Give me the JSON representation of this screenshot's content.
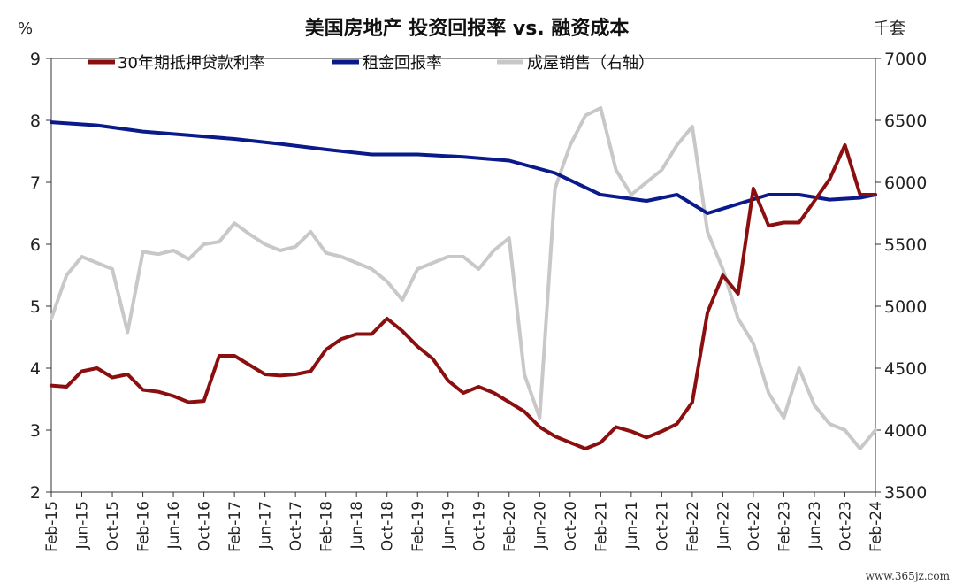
{
  "chart_data": {
    "type": "line",
    "title": "美国房地产 投资回报率 vs. 融资成本",
    "left_unit": "%",
    "right_unit": "千套",
    "ylim_left": [
      2,
      9
    ],
    "ylim_right": [
      3500,
      7000
    ],
    "left_ticks": [
      "2",
      "3",
      "4",
      "5",
      "6",
      "7",
      "8",
      "9"
    ],
    "right_ticks": [
      "3500",
      "4000",
      "4500",
      "5000",
      "5500",
      "6000",
      "6500",
      "7000"
    ],
    "x_start": "2015-02",
    "x_end": "2024-02",
    "x_tick_labels": [
      "Feb-15",
      "Jun-15",
      "Oct-15",
      "Feb-16",
      "Jun-16",
      "Oct-16",
      "Feb-17",
      "Jun-17",
      "Oct-17",
      "Feb-18",
      "Jun-18",
      "Oct-18",
      "Feb-19",
      "Jun-19",
      "Oct-19",
      "Feb-20",
      "Jun-20",
      "Oct-20",
      "Feb-21",
      "Jun-21",
      "Oct-21",
      "Feb-22",
      "Jun-22",
      "Oct-22",
      "Feb-23",
      "Jun-23",
      "Oct-23",
      "Feb-24"
    ],
    "legend_position": "top",
    "series": [
      {
        "name": "30年期抵押贷款利率",
        "axis": "left",
        "color": "#8b0f0f",
        "x": [
          "2015-02",
          "2015-04",
          "2015-06",
          "2015-08",
          "2015-10",
          "2015-12",
          "2016-02",
          "2016-04",
          "2016-06",
          "2016-08",
          "2016-10",
          "2016-12",
          "2017-02",
          "2017-04",
          "2017-06",
          "2017-08",
          "2017-10",
          "2017-12",
          "2018-02",
          "2018-04",
          "2018-06",
          "2018-08",
          "2018-10",
          "2018-12",
          "2019-02",
          "2019-04",
          "2019-06",
          "2019-08",
          "2019-10",
          "2019-12",
          "2020-02",
          "2020-04",
          "2020-06",
          "2020-08",
          "2020-10",
          "2020-12",
          "2021-02",
          "2021-04",
          "2021-06",
          "2021-08",
          "2021-10",
          "2021-12",
          "2022-02",
          "2022-04",
          "2022-06",
          "2022-08",
          "2022-10",
          "2022-12",
          "2023-02",
          "2023-04",
          "2023-06",
          "2023-08",
          "2023-10",
          "2023-12",
          "2024-02"
        ],
        "values": [
          3.72,
          3.7,
          3.95,
          4.0,
          3.85,
          3.9,
          3.65,
          3.62,
          3.55,
          3.45,
          3.47,
          4.2,
          4.2,
          4.05,
          3.9,
          3.88,
          3.9,
          3.95,
          4.3,
          4.47,
          4.55,
          4.55,
          4.8,
          4.6,
          4.35,
          4.15,
          3.8,
          3.6,
          3.7,
          3.6,
          3.45,
          3.3,
          3.05,
          2.9,
          2.8,
          2.7,
          2.8,
          3.05,
          2.98,
          2.88,
          2.98,
          3.1,
          3.45,
          4.9,
          5.5,
          5.2,
          6.9,
          6.3,
          6.35,
          6.35,
          6.7,
          7.05,
          7.6,
          6.8,
          6.8
        ]
      },
      {
        "name": "租金回报率",
        "axis": "left",
        "color": "#0a1a8a",
        "x": [
          "2015-02",
          "2015-08",
          "2016-02",
          "2016-08",
          "2017-02",
          "2017-08",
          "2018-02",
          "2018-08",
          "2019-02",
          "2019-08",
          "2020-02",
          "2020-08",
          "2021-02",
          "2021-08",
          "2021-12",
          "2022-04",
          "2022-08",
          "2022-12",
          "2023-04",
          "2023-08",
          "2023-12",
          "2024-02"
        ],
        "values": [
          7.97,
          7.92,
          7.82,
          7.76,
          7.7,
          7.62,
          7.53,
          7.45,
          7.45,
          7.41,
          7.35,
          7.15,
          6.8,
          6.7,
          6.8,
          6.5,
          6.65,
          6.8,
          6.8,
          6.72,
          6.75,
          6.8
        ]
      },
      {
        "name": "成屋销售（右轴）",
        "axis": "right",
        "color": "#c8c8c8",
        "x": [
          "2015-02",
          "2015-04",
          "2015-06",
          "2015-08",
          "2015-10",
          "2015-12",
          "2016-02",
          "2016-04",
          "2016-06",
          "2016-08",
          "2016-10",
          "2016-12",
          "2017-02",
          "2017-04",
          "2017-06",
          "2017-08",
          "2017-10",
          "2017-12",
          "2018-02",
          "2018-04",
          "2018-06",
          "2018-08",
          "2018-10",
          "2018-12",
          "2019-02",
          "2019-04",
          "2019-06",
          "2019-08",
          "2019-10",
          "2019-12",
          "2020-02",
          "2020-04",
          "2020-06",
          "2020-08",
          "2020-10",
          "2020-12",
          "2021-02",
          "2021-04",
          "2021-06",
          "2021-08",
          "2021-10",
          "2021-12",
          "2022-02",
          "2022-04",
          "2022-06",
          "2022-08",
          "2022-10",
          "2022-12",
          "2023-02",
          "2023-04",
          "2023-06",
          "2023-08",
          "2023-10",
          "2023-12",
          "2024-02"
        ],
        "values": [
          4900,
          5250,
          5400,
          5350,
          5300,
          4790,
          5440,
          5420,
          5450,
          5380,
          5500,
          5520,
          5670,
          5580,
          5500,
          5450,
          5480,
          5600,
          5430,
          5400,
          5350,
          5300,
          5200,
          5050,
          5300,
          5350,
          5400,
          5400,
          5300,
          5450,
          5550,
          4450,
          4100,
          5950,
          6300,
          6540,
          6600,
          6100,
          5900,
          6000,
          6100,
          6300,
          6450,
          5600,
          5300,
          4900,
          4700,
          4300,
          4100,
          4500,
          4200,
          4050,
          4000,
          3850,
          4000
        ]
      }
    ]
  }
}
